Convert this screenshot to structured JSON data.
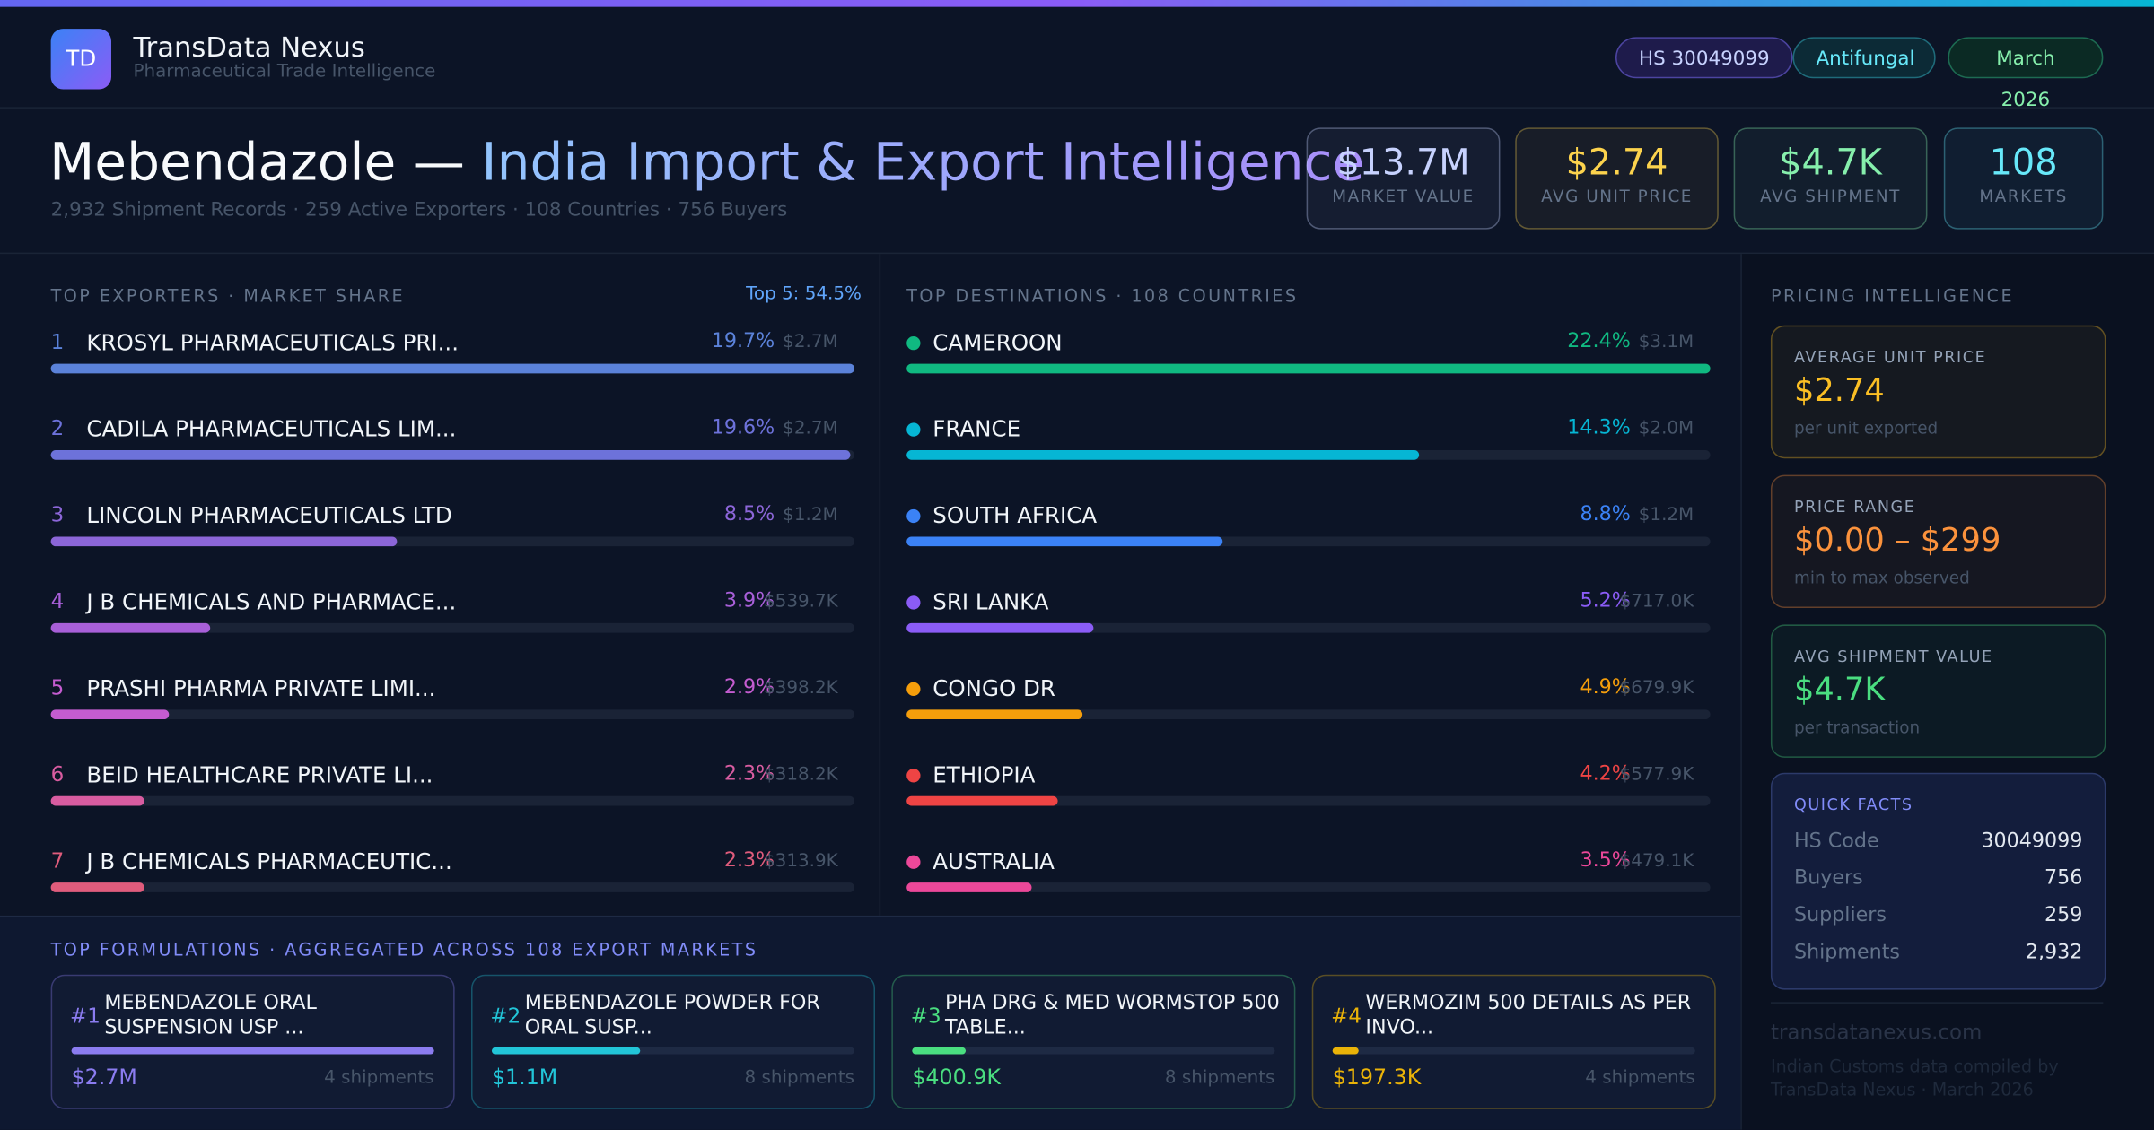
{
  "header": {
    "logo": "TD",
    "brand": "TransData Nexus",
    "tagline": "Pharmaceutical Trade Intelligence",
    "pills": [
      "HS 30049099",
      "Antifungal",
      "March 2026"
    ]
  },
  "hero": {
    "title_main": "Mebendazole —",
    "title_accent": "India Import & Export Intelligence",
    "subtitle": "2,932 Shipment Records · 259 Active Exporters · 108 Countries · 756 Buyers",
    "kpis": [
      {
        "value": "$13.7M",
        "label": "MARKET VALUE",
        "color": "#c7d2fe"
      },
      {
        "value": "$2.74",
        "label": "AVG UNIT PRICE",
        "color": "#fcd34d"
      },
      {
        "value": "$4.7K",
        "label": "AVG SHIPMENT",
        "color": "#86efac"
      },
      {
        "value": "108",
        "label": "MARKETS",
        "color": "#67e8f9"
      }
    ]
  },
  "exporters": {
    "heading": "TOP EXPORTERS · MARKET SHARE",
    "note": "Top 5: 54.5%",
    "items": [
      {
        "rank": 1,
        "name": "KROSYL PHARMACEUTICALS PRI...",
        "share": 19.7,
        "share_label": "19.7%",
        "value_label": "$2.7M",
        "color": "#5b82d9"
      },
      {
        "rank": 2,
        "name": "CADILA PHARMACEUTICALS LIM...",
        "share": 19.6,
        "share_label": "19.6%",
        "value_label": "$2.7M",
        "color": "#6d72da"
      },
      {
        "rank": 3,
        "name": "LINCOLN PHARMACEUTICALS LTD",
        "share": 8.5,
        "share_label": "8.5%",
        "value_label": "$1.2M",
        "color": "#8c66d8"
      },
      {
        "rank": 4,
        "name": "J B CHEMICALS AND PHARMACE...",
        "share": 3.9,
        "share_label": "3.9%",
        "value_label": "$539.7K",
        "color": "#a85fd8"
      },
      {
        "rank": 5,
        "name": "PRASHI PHARMA PRIVATE  LIMI...",
        "share": 2.9,
        "share_label": "2.9%",
        "value_label": "$398.2K",
        "color": "#c45cd0"
      },
      {
        "rank": 6,
        "name": "BEID HEALTHCARE PRIVATE  LI...",
        "share": 2.3,
        "share_label": "2.3%",
        "value_label": "$318.2K",
        "color": "#d85ca0"
      },
      {
        "rank": 7,
        "name": "J B CHEMICALS PHARMACEUTIC...",
        "share": 2.3,
        "share_label": "2.3%",
        "value_label": "$313.9K",
        "color": "#e05c7c"
      }
    ]
  },
  "destinations": {
    "heading": "TOP DESTINATIONS · 108 COUNTRIES",
    "items": [
      {
        "name": "CAMEROON",
        "share": 22.4,
        "share_label": "22.4%",
        "value_label": "$3.1M",
        "color": "#10b981"
      },
      {
        "name": "FRANCE",
        "share": 14.3,
        "share_label": "14.3%",
        "value_label": "$2.0M",
        "color": "#06b6d4"
      },
      {
        "name": "SOUTH AFRICA",
        "share": 8.8,
        "share_label": "8.8%",
        "value_label": "$1.2M",
        "color": "#3b82f6"
      },
      {
        "name": "SRI LANKA",
        "share": 5.2,
        "share_label": "5.2%",
        "value_label": "$717.0K",
        "color": "#8b5cf6"
      },
      {
        "name": "CONGO DR",
        "share": 4.9,
        "share_label": "4.9%",
        "value_label": "$679.9K",
        "color": "#f59e0b"
      },
      {
        "name": "ETHIOPIA",
        "share": 4.2,
        "share_label": "4.2%",
        "value_label": "$577.9K",
        "color": "#ef4444"
      },
      {
        "name": "AUSTRALIA",
        "share": 3.5,
        "share_label": "3.5%",
        "value_label": "$479.1K",
        "color": "#ec4899"
      }
    ]
  },
  "formulations": {
    "heading": "TOP FORMULATIONS · AGGREGATED ACROSS 108 EXPORT MARKETS",
    "items": [
      {
        "rank": "#1",
        "name": "MEBENDAZOLE ORAL SUSPENSION USP ...",
        "value": 2700000,
        "value_label": "$2.7M",
        "shipments": "4 shipments",
        "color": "#8b7cf0"
      },
      {
        "rank": "#2",
        "name": "MEBENDAZOLE POWDER FOR ORAL SUSP...",
        "value": 1100000,
        "value_label": "$1.1M",
        "shipments": "8 shipments",
        "color": "#22c5d8"
      },
      {
        "rank": "#3",
        "name": "PHA DRG & MED WORMSTOP 500 TABLE...",
        "value": 400900,
        "value_label": "$400.9K",
        "shipments": "8 shipments",
        "color": "#4ade80"
      },
      {
        "rank": "#4",
        "name": "WERMOZIM 500 DETAILS AS PER INVO...",
        "value": 197300,
        "value_label": "$197.3K",
        "shipments": "4 shipments",
        "color": "#eab308"
      }
    ]
  },
  "pricing": {
    "heading": "PRICING INTELLIGENCE",
    "cards": [
      {
        "label": "AVERAGE UNIT PRICE",
        "value": "$2.74",
        "note": "per unit exported",
        "color": "#fbbf24"
      },
      {
        "label": "PRICE RANGE",
        "value": "$0.00 – $299",
        "note": "min to max observed",
        "color": "#fb923c"
      },
      {
        "label": "AVG SHIPMENT VALUE",
        "value": "$4.7K",
        "note": "per transaction",
        "color": "#4ade80"
      }
    ],
    "facts_heading": "QUICK FACTS",
    "facts": [
      [
        "HS Code",
        "30049099"
      ],
      [
        "Buyers",
        "756"
      ],
      [
        "Suppliers",
        "259"
      ],
      [
        "Shipments",
        "2,932"
      ]
    ]
  },
  "footer": {
    "site": "transdatanexus.com",
    "note": "Indian Customs data compiled by TransData Nexus · March 2026"
  }
}
